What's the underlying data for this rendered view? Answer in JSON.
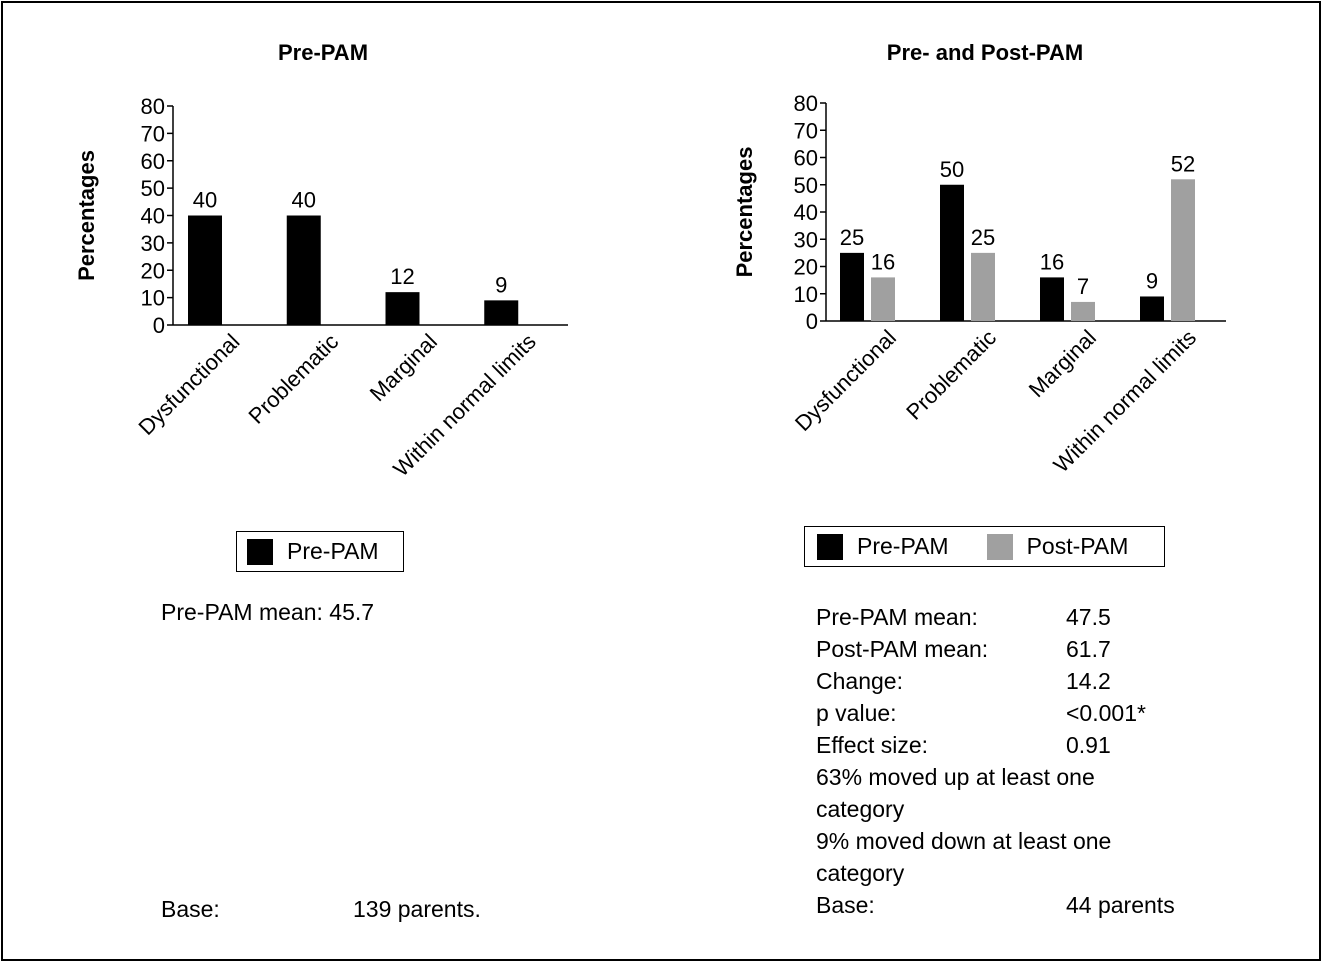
{
  "chart_data": [
    {
      "type": "bar",
      "title": "Pre-PAM",
      "ylabel": "Percentages",
      "ylim": [
        0,
        80
      ],
      "yticks": [
        0,
        10,
        20,
        30,
        40,
        50,
        60,
        70,
        80
      ],
      "categories": [
        "Dysfunctional",
        "Problematic",
        "Marginal",
        "Within normal limits"
      ],
      "series": [
        {
          "name": "Pre-PAM",
          "values": [
            40,
            40,
            12,
            9
          ]
        }
      ],
      "legend": "bottom",
      "colors": {
        "Pre-PAM": "#000000"
      }
    },
    {
      "type": "bar",
      "title": "Pre- and Post-PAM",
      "ylabel": "Percentages",
      "ylim": [
        0,
        80
      ],
      "yticks": [
        0,
        10,
        20,
        30,
        40,
        50,
        60,
        70,
        80
      ],
      "categories": [
        "Dysfunctional",
        "Problematic",
        "Marginal",
        "Within normal limits"
      ],
      "series": [
        {
          "name": "Pre-PAM",
          "values": [
            25,
            50,
            16,
            9
          ]
        },
        {
          "name": "Post-PAM",
          "values": [
            16,
            25,
            7,
            52
          ]
        }
      ],
      "legend": "bottom",
      "colors": {
        "Pre-PAM": "#000000",
        "Post-PAM": "#a0a0a0"
      }
    }
  ],
  "left_stats": {
    "mean": "Pre-PAM mean: 45.7",
    "base_key": "Base:",
    "base_val": "139 parents."
  },
  "right_stats": {
    "rows": [
      {
        "k": "Pre-PAM mean:",
        "v": "47.5"
      },
      {
        "k": "Post-PAM mean:",
        "v": "61.7"
      },
      {
        "k": "Change:",
        "v": "14.2"
      },
      {
        "k": "p value:",
        "v": "<0.001*"
      },
      {
        "k": "Effect size:",
        "v": "0.91"
      }
    ],
    "moved_up": [
      "63% moved up at least one",
      "category"
    ],
    "moved_down": [
      "9% moved down at least one",
      "category"
    ],
    "base_key": "Base:",
    "base_val": "44 parents"
  }
}
